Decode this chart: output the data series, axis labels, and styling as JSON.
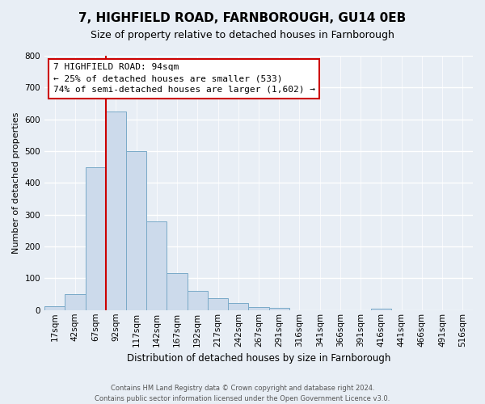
{
  "title": "7, HIGHFIELD ROAD, FARNBOROUGH, GU14 0EB",
  "subtitle": "Size of property relative to detached houses in Farnborough",
  "xlabel": "Distribution of detached houses by size in Farnborough",
  "ylabel": "Number of detached properties",
  "bar_values": [
    12,
    50,
    450,
    625,
    500,
    280,
    117,
    60,
    38,
    23,
    9,
    7,
    0,
    0,
    0,
    0,
    5,
    0,
    0,
    0,
    0
  ],
  "bin_labels": [
    "17sqm",
    "42sqm",
    "67sqm",
    "92sqm",
    "117sqm",
    "142sqm",
    "167sqm",
    "192sqm",
    "217sqm",
    "242sqm",
    "267sqm",
    "291sqm",
    "316sqm",
    "341sqm",
    "366sqm",
    "391sqm",
    "416sqm",
    "441sqm",
    "466sqm",
    "491sqm",
    "516sqm"
  ],
  "bar_color": "#ccdaeb",
  "bar_edge_color": "#7aaac8",
  "ylim": [
    0,
    800
  ],
  "yticks": [
    0,
    100,
    200,
    300,
    400,
    500,
    600,
    700,
    800
  ],
  "vline_x": 3,
  "vline_color": "#cc0000",
  "annotation_line1": "7 HIGHFIELD ROAD: 94sqm",
  "annotation_line2": "← 25% of detached houses are smaller (533)",
  "annotation_line3": "74% of semi-detached houses are larger (1,602) →",
  "annotation_box_color": "#ffffff",
  "annotation_box_edge": "#cc0000",
  "footer_line1": "Contains HM Land Registry data © Crown copyright and database right 2024.",
  "footer_line2": "Contains public sector information licensed under the Open Government Licence v3.0.",
  "background_color": "#e8eef5",
  "grid_color": "#ffffff",
  "title_fontsize": 11,
  "subtitle_fontsize": 9,
  "xlabel_fontsize": 8.5,
  "ylabel_fontsize": 8,
  "tick_fontsize": 7.5,
  "annotation_fontsize": 8
}
